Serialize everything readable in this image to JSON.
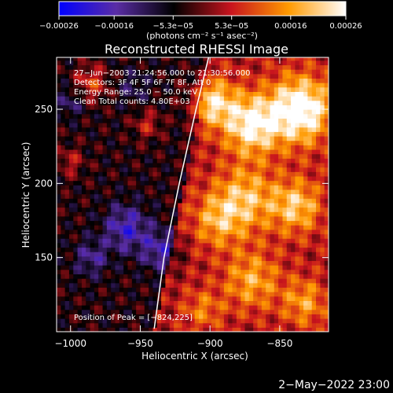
{
  "chart_data": {
    "type": "heatmap",
    "title": "Reconstructed RHESSI Image",
    "xlabel": "Heliocentric X (arcsec)",
    "ylabel": "Heliocentric Y (arcsec)",
    "xlim": [
      -1010,
      -815
    ],
    "ylim": [
      100,
      285
    ],
    "xticks": [
      -1000,
      -950,
      -900,
      -850
    ],
    "xtick_labels": [
      "−1000",
      "−950",
      "−900",
      "−850"
    ],
    "yticks": [
      150,
      200,
      250
    ],
    "ytick_labels": [
      "150",
      "200",
      "250"
    ],
    "colorbar": {
      "min": -0.00026,
      "max": 0.00026,
      "ticks": [
        -0.00026,
        -0.00016,
        -5.3e-05,
        5.3e-05,
        0.00016,
        0.00026
      ],
      "tick_labels": [
        "−0.00026",
        "−0.00016",
        "−5.3e−05",
        "5.3e−05",
        "0.00016",
        "0.00026"
      ],
      "units_label": "(photons cm⁻² s⁻¹ asec⁻²)",
      "colors": [
        "#0000ff",
        "#5a2da5",
        "#000000",
        "#c8141e",
        "#ff9a00",
        "#ffffff"
      ]
    },
    "annotations": [
      "27−Jun−2003 21:24:56.000 to 21:30:56.000",
      "Detectors: 3F 4F 5F 6F 7F 8F, Att 0",
      "Energy Range: 25.0 − 50.0 keV",
      "Clean     Total counts: 4.80E+03"
    ],
    "peak_label": "Position of Peak = [−824,225]",
    "limb_line": {
      "x": [
        -940,
        -933,
        -922,
        -910,
        -901
      ],
      "y": [
        102,
        150,
        200,
        250,
        285
      ]
    },
    "hot_spots": [
      {
        "x": -835,
        "y": 250,
        "value": 0.00026,
        "r": 22
      },
      {
        "x": -870,
        "y": 240,
        "value": 0.00022,
        "r": 20
      },
      {
        "x": -898,
        "y": 255,
        "value": 0.00018,
        "r": 16
      },
      {
        "x": -875,
        "y": 190,
        "value": 0.00015,
        "r": 22
      },
      {
        "x": -838,
        "y": 185,
        "value": 0.00016,
        "r": 18
      },
      {
        "x": -895,
        "y": 175,
        "value": 0.00012,
        "r": 18
      },
      {
        "x": -870,
        "y": 135,
        "value": 0.00013,
        "r": 20
      },
      {
        "x": -832,
        "y": 120,
        "value": 0.00012,
        "r": 16
      },
      {
        "x": -905,
        "y": 115,
        "value": 9e-05,
        "r": 14
      },
      {
        "x": -985,
        "y": 268,
        "value": 0.00012,
        "r": 12
      },
      {
        "x": -945,
        "y": 240,
        "value": 9e-05,
        "r": 10
      },
      {
        "x": -1000,
        "y": 215,
        "value": 8e-05,
        "r": 10
      },
      {
        "x": -960,
        "y": 170,
        "value": -0.00014,
        "r": 16
      },
      {
        "x": -935,
        "y": 155,
        "value": -0.00012,
        "r": 14
      },
      {
        "x": -985,
        "y": 150,
        "value": -0.0001,
        "r": 12
      },
      {
        "x": -1000,
        "y": 255,
        "value": -8e-05,
        "r": 10
      },
      {
        "x": -955,
        "y": 265,
        "value": -6e-05,
        "r": 12
      }
    ]
  },
  "footer": {
    "date": "2−May−2022 23:00"
  }
}
